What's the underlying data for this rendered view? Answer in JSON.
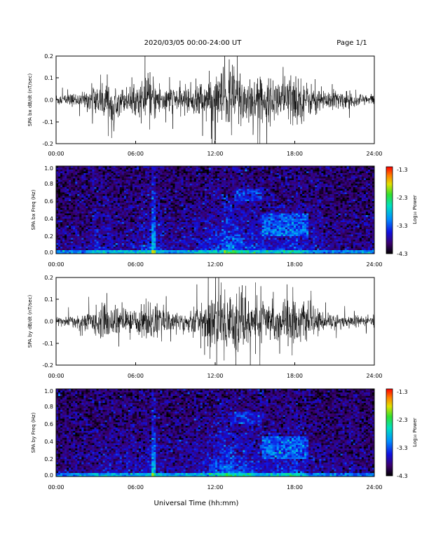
{
  "header": {
    "title": "2020/03/05  00:00-24:00 UT",
    "page": "Page 1/1"
  },
  "xlabel": "Universal Time (hh:mm)",
  "colorbar": {
    "label": "Log₁₀ Power",
    "ticks": [
      "-1.3",
      "-2.3",
      "-3.3",
      "-4.3"
    ],
    "range": [
      -4.3,
      -1.3
    ]
  },
  "chart_data": [
    {
      "type": "line",
      "ylabel": "SPA bx dB/dt (nT/sec)",
      "xlim": [
        0,
        24
      ],
      "ylim": [
        -0.2,
        0.2
      ],
      "x_ticks": [
        "00:00",
        "06:00",
        "12:00",
        "18:00",
        "24:00"
      ],
      "y_ticks": [
        "0.2",
        "0.1",
        "0.0",
        "-0.1",
        "-0.2"
      ],
      "envelope": {
        "hours": [
          0,
          1,
          2,
          3,
          4,
          5,
          6,
          7,
          8,
          9,
          10,
          11,
          12,
          13,
          14,
          15,
          16,
          17,
          18,
          19,
          20,
          21,
          22,
          23,
          24
        ],
        "amplitude": [
          0.03,
          0.03,
          0.035,
          0.08,
          0.1,
          0.06,
          0.07,
          0.12,
          0.08,
          0.06,
          0.07,
          0.1,
          0.12,
          0.2,
          0.15,
          0.12,
          0.1,
          0.12,
          0.14,
          0.08,
          0.06,
          0.05,
          0.04,
          0.03,
          0.03
        ]
      }
    },
    {
      "type": "heatmap",
      "ylabel": "SPA bx Freq (Hz)",
      "xlim": [
        0,
        24
      ],
      "ylim": [
        0,
        1.0
      ],
      "x_ticks": [
        "00:00",
        "06:00",
        "12:00",
        "18:00",
        "24:00"
      ],
      "y_ticks": [
        "1.0",
        "0.8",
        "0.6",
        "0.4",
        "0.2",
        "0.0"
      ],
      "zlabel": "Log₁₀ Power",
      "zlim": [
        -4.3,
        -1.3
      ]
    },
    {
      "type": "line",
      "ylabel": "SPA by dB/dt (nT/sec)",
      "xlim": [
        0,
        24
      ],
      "ylim": [
        -0.2,
        0.2
      ],
      "x_ticks": [
        "00:00",
        "06:00",
        "12:00",
        "18:00",
        "24:00"
      ],
      "y_ticks": [
        "0.2",
        "0.1",
        "0.0",
        "-0.1",
        "-0.2"
      ],
      "envelope": {
        "hours": [
          0,
          1,
          2,
          3,
          4,
          5,
          6,
          7,
          8,
          9,
          10,
          11,
          12,
          13,
          14,
          15,
          16,
          17,
          18,
          19,
          20,
          21,
          22,
          23,
          24
        ],
        "amplitude": [
          0.025,
          0.03,
          0.035,
          0.07,
          0.09,
          0.06,
          0.06,
          0.11,
          0.07,
          0.05,
          0.06,
          0.09,
          0.15,
          0.2,
          0.14,
          0.12,
          0.1,
          0.11,
          0.13,
          0.07,
          0.05,
          0.04,
          0.03,
          0.03,
          0.025
        ]
      }
    },
    {
      "type": "heatmap",
      "ylabel": "SPA by Freq (Hz)",
      "xlim": [
        0,
        24
      ],
      "ylim": [
        0,
        1.0
      ],
      "x_ticks": [
        "00:00",
        "06:00",
        "12:00",
        "18:00",
        "24:00"
      ],
      "y_ticks": [
        "1.0",
        "0.8",
        "0.6",
        "0.4",
        "0.2",
        "0.0"
      ],
      "zlabel": "Log₁₀ Power",
      "zlim": [
        -4.3,
        -1.3
      ]
    }
  ]
}
